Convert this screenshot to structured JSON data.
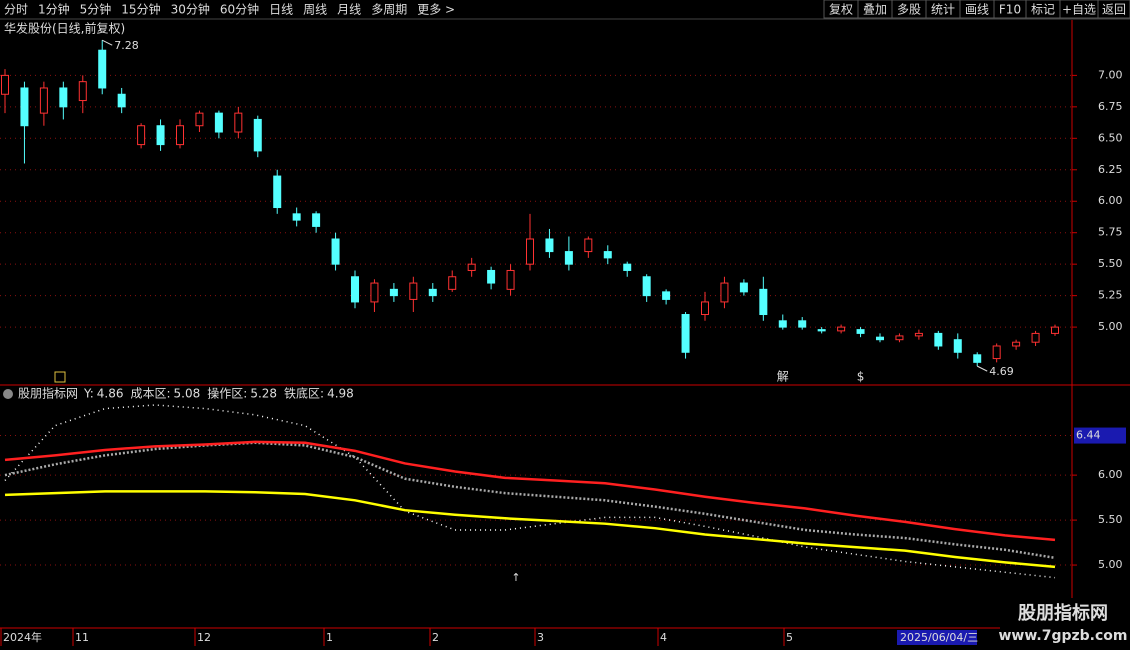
{
  "toolbar": {
    "periods": [
      "分时",
      "1分钟",
      "5分钟",
      "15分钟",
      "30分钟",
      "60分钟",
      "日线",
      "周线",
      "月线",
      "多周期",
      "更多 >"
    ],
    "active": "日线",
    "buttons": [
      "复权",
      "叠加",
      "多股",
      "统计",
      "画线",
      "F10",
      "标记",
      "+自选",
      "返回"
    ]
  },
  "chart_data": [
    {
      "type": "candlestick",
      "title": "华发股份(日线,前复权)",
      "up_color": "#ff3232",
      "down_color": "#54ffff",
      "open": [
        6.85,
        6.9,
        6.7,
        6.9,
        6.8,
        7.2,
        6.85,
        6.45,
        6.6,
        6.45,
        6.6,
        6.7,
        6.55,
        6.65,
        6.2,
        5.9,
        5.9,
        5.7,
        5.4,
        5.2,
        5.3,
        5.22,
        5.3,
        5.3,
        5.45,
        5.45,
        5.3,
        5.5,
        5.7,
        5.6,
        5.6,
        5.6,
        5.5,
        5.4,
        5.28,
        5.1,
        5.1,
        5.2,
        5.35,
        5.3,
        5.05,
        5.05,
        4.98,
        4.97,
        4.98,
        4.92,
        4.9,
        4.93,
        4.95,
        4.9,
        4.78,
        4.75,
        4.85,
        4.88,
        4.95
      ],
      "high": [
        7.05,
        6.95,
        6.95,
        6.95,
        7.0,
        7.28,
        6.9,
        6.62,
        6.65,
        6.65,
        6.72,
        6.72,
        6.75,
        6.68,
        6.25,
        5.95,
        5.92,
        5.75,
        5.45,
        5.38,
        5.35,
        5.4,
        5.35,
        5.45,
        5.55,
        5.48,
        5.5,
        5.9,
        5.78,
        5.72,
        5.72,
        5.65,
        5.52,
        5.42,
        5.3,
        5.12,
        5.28,
        5.4,
        5.38,
        5.4,
        5.1,
        5.08,
        5.0,
        5.02,
        5.0,
        4.95,
        4.95,
        4.98,
        4.97,
        4.95,
        4.8,
        4.87,
        4.9,
        4.97,
        5.02
      ],
      "low": [
        6.7,
        6.3,
        6.6,
        6.65,
        6.7,
        6.85,
        6.7,
        6.42,
        6.4,
        6.42,
        6.55,
        6.5,
        6.5,
        6.35,
        5.9,
        5.8,
        5.75,
        5.45,
        5.15,
        5.12,
        5.2,
        5.12,
        5.2,
        5.28,
        5.4,
        5.3,
        5.25,
        5.45,
        5.55,
        5.45,
        5.55,
        5.5,
        5.4,
        5.2,
        5.18,
        4.75,
        5.05,
        5.15,
        5.25,
        5.05,
        4.98,
        4.98,
        4.95,
        4.95,
        4.92,
        4.88,
        4.88,
        4.9,
        4.82,
        4.75,
        4.69,
        4.72,
        4.82,
        4.85,
        4.93
      ],
      "close": [
        7.0,
        6.6,
        6.9,
        6.75,
        6.95,
        6.9,
        6.75,
        6.6,
        6.45,
        6.6,
        6.7,
        6.55,
        6.7,
        6.4,
        5.95,
        5.85,
        5.8,
        5.5,
        5.2,
        5.35,
        5.25,
        5.35,
        5.25,
        5.4,
        5.5,
        5.35,
        5.45,
        5.7,
        5.6,
        5.5,
        5.7,
        5.55,
        5.45,
        5.25,
        5.22,
        4.8,
        5.2,
        5.35,
        5.28,
        5.1,
        5.0,
        5.0,
        4.97,
        5.0,
        4.95,
        4.9,
        4.93,
        4.95,
        4.85,
        4.8,
        4.72,
        4.85,
        4.88,
        4.95,
        5.0
      ],
      "annotations": [
        {
          "text": "7.28",
          "index": 5,
          "at": "high"
        },
        {
          "text": "4.69",
          "index": 50,
          "at": "low"
        }
      ],
      "events": [
        {
          "text": "解",
          "index": 40,
          "color": "#54ffff"
        },
        {
          "text": "$",
          "index": 44,
          "color": "#ff3232"
        }
      ],
      "ylim": [
        4.54,
        7.44
      ],
      "yticks": [
        {
          "value": 5,
          "label": "5.00"
        },
        {
          "value": 5.25,
          "label": "5.25"
        },
        {
          "value": 5.5,
          "label": "5.50"
        },
        {
          "value": 5.75,
          "label": "5.75"
        },
        {
          "value": 6,
          "label": "6.00"
        },
        {
          "value": 6.25,
          "label": "6.25"
        },
        {
          "value": 6.5,
          "label": "6.50"
        },
        {
          "value": 6.75,
          "label": "6.75"
        },
        {
          "value": 7,
          "label": "7.00"
        }
      ],
      "grid": true
    },
    {
      "type": "line",
      "title": "股朋指标网",
      "series": [
        {
          "name": "Y:",
          "legend_value": "4.86",
          "color": "#ffffff",
          "style": "dotted",
          "values": [
            5.94,
            6.55,
            6.74,
            6.78,
            6.74,
            6.67,
            6.55,
            6.2,
            5.6,
            5.39,
            5.39,
            5.46,
            5.53,
            5.53,
            5.43,
            5.32,
            5.2,
            5.12,
            5.04,
            4.98,
            4.92,
            4.86
          ]
        },
        {
          "name": "成本区:",
          "legend_value": "5.08",
          "color": "#aaaaaa",
          "style": "beads",
          "values": [
            6.0,
            6.12,
            6.22,
            6.29,
            6.33,
            6.36,
            6.33,
            6.2,
            5.96,
            5.87,
            5.8,
            5.76,
            5.72,
            5.65,
            5.57,
            5.48,
            5.39,
            5.34,
            5.3,
            5.23,
            5.17,
            5.08
          ]
        },
        {
          "name": "操作区:",
          "legend_value": "5.28",
          "color": "#ff2020",
          "style": "solid",
          "values": [
            6.17,
            6.22,
            6.28,
            6.32,
            6.34,
            6.37,
            6.36,
            6.27,
            6.13,
            6.04,
            5.97,
            5.94,
            5.91,
            5.84,
            5.76,
            5.69,
            5.63,
            5.55,
            5.48,
            5.4,
            5.33,
            5.28
          ]
        },
        {
          "name": "铁底区:",
          "legend_value": "4.98",
          "color": "#ffff00",
          "style": "solid",
          "values": [
            5.78,
            5.8,
            5.82,
            5.82,
            5.82,
            5.81,
            5.79,
            5.72,
            5.61,
            5.56,
            5.52,
            5.49,
            5.46,
            5.41,
            5.34,
            5.29,
            5.24,
            5.2,
            5.16,
            5.09,
            5.03,
            4.98
          ]
        }
      ],
      "cursor": {
        "value": 6.44,
        "label": "6.44"
      },
      "ylim": [
        4.3,
        6.98
      ],
      "yticks": [
        {
          "value": 5,
          "label": "5.00"
        },
        {
          "value": 5.5,
          "label": "5.50"
        },
        {
          "value": 6,
          "label": "6.00"
        }
      ],
      "grid": true
    }
  ],
  "x_labels": [
    "2024年",
    "11",
    "12",
    "1",
    "2",
    "3",
    "4",
    "5"
  ],
  "cursor_date": "2025/06/04/三",
  "watermark": {
    "title": "股朋指标网",
    "url": "www.7gpzb.com"
  }
}
